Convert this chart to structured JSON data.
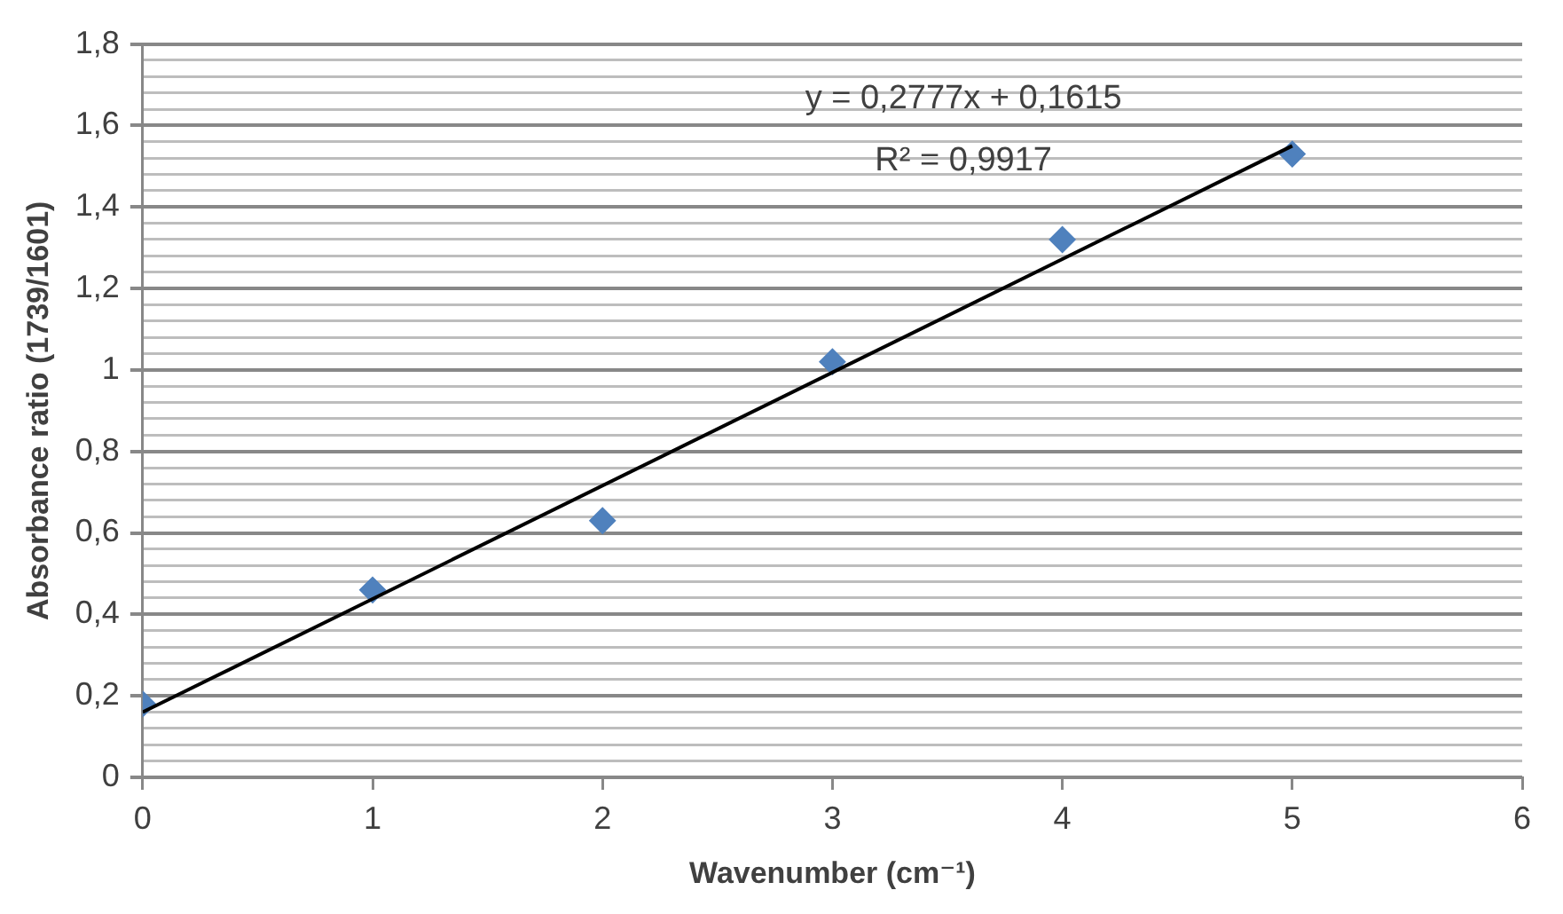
{
  "chart_data": {
    "type": "scatter",
    "xlabel": "Wavenumber (cm⁻¹)",
    "ylabel": "Absorbance ratio (1739/1601)",
    "annotations": [
      "y = 0,2777x + 0,1615",
      "R² = 0,9917"
    ],
    "series": [
      {
        "color": "#4f81bd",
        "marker": "diamond",
        "x": [
          0,
          1,
          2,
          3,
          4,
          5
        ],
        "values": [
          0.18,
          0.46,
          0.63,
          1.02,
          1.32,
          1.53
        ]
      },
      {
        "type": "line",
        "color": "#000000",
        "marker": "none",
        "line_style": "solid",
        "x": [
          0,
          5
        ],
        "values": [
          0.16,
          1.55
        ]
      }
    ],
    "xlim": [
      0,
      6
    ],
    "xticks": [
      0,
      1,
      2,
      3,
      4,
      5,
      6
    ],
    "ylim": [
      0,
      1.8
    ],
    "yticks": [
      {
        "value": 0,
        "label": "0"
      },
      {
        "value": 0.04,
        "label": null
      },
      {
        "value": 0.08,
        "label": null
      },
      {
        "value": 0.12,
        "label": null
      },
      {
        "value": 0.16,
        "label": null
      },
      {
        "value": 0.2,
        "label": "0,2"
      },
      {
        "value": 0.24,
        "label": null
      },
      {
        "value": 0.28,
        "label": null
      },
      {
        "value": 0.32,
        "label": null
      },
      {
        "value": 0.36,
        "label": null
      },
      {
        "value": 0.4,
        "label": "0,4"
      },
      {
        "value": 0.44,
        "label": null
      },
      {
        "value": 0.48,
        "label": null
      },
      {
        "value": 0.52,
        "label": null
      },
      {
        "value": 0.56,
        "label": null
      },
      {
        "value": 0.6,
        "label": "0,6"
      },
      {
        "value": 0.64,
        "label": null
      },
      {
        "value": 0.68,
        "label": null
      },
      {
        "value": 0.72,
        "label": null
      },
      {
        "value": 0.76,
        "label": null
      },
      {
        "value": 0.8,
        "label": "0,8"
      },
      {
        "value": 0.84,
        "label": null
      },
      {
        "value": 0.88,
        "label": null
      },
      {
        "value": 0.92,
        "label": null
      },
      {
        "value": 0.96,
        "label": null
      },
      {
        "value": 1,
        "label": "1"
      },
      {
        "value": 1.04,
        "label": null
      },
      {
        "value": 1.08,
        "label": null
      },
      {
        "value": 1.12,
        "label": null
      },
      {
        "value": 1.16,
        "label": null
      },
      {
        "value": 1.2,
        "label": "1,2"
      },
      {
        "value": 1.24,
        "label": null
      },
      {
        "value": 1.28,
        "label": null
      },
      {
        "value": 1.32,
        "label": null
      },
      {
        "value": 1.36,
        "label": null
      },
      {
        "value": 1.4,
        "label": "1,4"
      },
      {
        "value": 1.44,
        "label": null
      },
      {
        "value": 1.48,
        "label": null
      },
      {
        "value": 1.52,
        "label": null
      },
      {
        "value": 1.56,
        "label": null
      },
      {
        "value": 1.6,
        "label": "1,6"
      },
      {
        "value": 1.64,
        "label": null
      },
      {
        "value": 1.68,
        "label": null
      },
      {
        "value": 1.72,
        "label": null
      },
      {
        "value": 1.76,
        "label": null
      },
      {
        "value": 1.8,
        "label": "1,8"
      }
    ],
    "grid": "y",
    "legend": false
  }
}
